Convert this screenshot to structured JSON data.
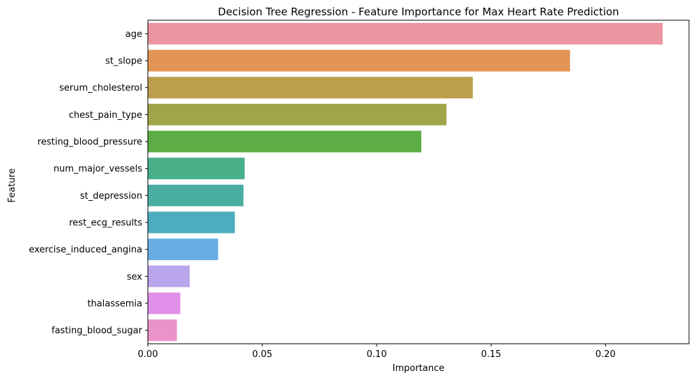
{
  "chart_data": {
    "type": "bar",
    "orientation": "horizontal",
    "title": "Decision Tree Regression - Feature Importance for Max Heart Rate Prediction",
    "xlabel": "Importance",
    "ylabel": "Feature",
    "xlim": [
      0,
      0.2365
    ],
    "xticks": [
      0.0,
      0.05,
      0.1,
      0.15,
      0.2
    ],
    "xtick_labels": [
      "0.00",
      "0.05",
      "0.10",
      "0.15",
      "0.20"
    ],
    "grid": false,
    "categories": [
      "age",
      "st_slope",
      "serum_cholesterol",
      "chest_pain_type",
      "resting_blood_pressure",
      "num_major_vessels",
      "st_depression",
      "rest_ecg_results",
      "exercise_induced_angina",
      "sex",
      "thalassemia",
      "fasting_blood_sugar"
    ],
    "values": [
      0.225,
      0.1845,
      0.142,
      0.1305,
      0.1195,
      0.0423,
      0.0418,
      0.038,
      0.0307,
      0.0183,
      0.0142,
      0.0127
    ],
    "colors": [
      "#EB95A0",
      "#E29454",
      "#BC9E4D",
      "#A1A549",
      "#5CAD45",
      "#4AB08A",
      "#4AADA2",
      "#4CADBE",
      "#67ADE5",
      "#B9A6EA",
      "#E18FE9",
      "#EB93C9"
    ]
  }
}
